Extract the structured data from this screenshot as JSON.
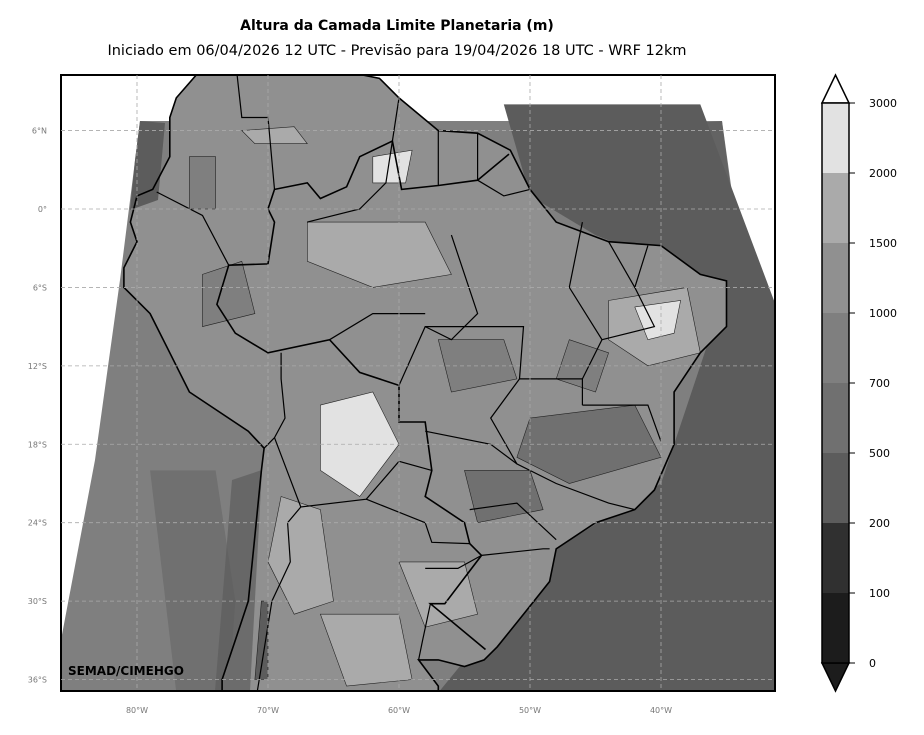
{
  "title": "Altura da Camada Limite Planetaria (m)",
  "subtitle": "Iniciado em 06/04/2026 12 UTC - Previsão para 19/04/2026 18 UTC - WRF 12km",
  "credit": "SEMAD/CIMEHGO",
  "lat_ticks": [
    "6°N",
    "0°",
    "6°S",
    "12°S",
    "18°S",
    "24°S",
    "30°S",
    "36°S"
  ],
  "lon_ticks": [
    "80°W",
    "70°W",
    "60°W",
    "50°W",
    "40°W"
  ],
  "colorbar": {
    "levels": [
      "0",
      "100",
      "200",
      "500",
      "700",
      "1000",
      "1500",
      "2000",
      "3000"
    ],
    "colors": [
      "#1c1c1c",
      "#303030",
      "#5c5c5c",
      "#707070",
      "#7f7f7f",
      "#909090",
      "#aaaaaa",
      "#e2e2e2"
    ],
    "over_color": "#ffffff",
    "under_color": "#1c1c1c"
  }
}
